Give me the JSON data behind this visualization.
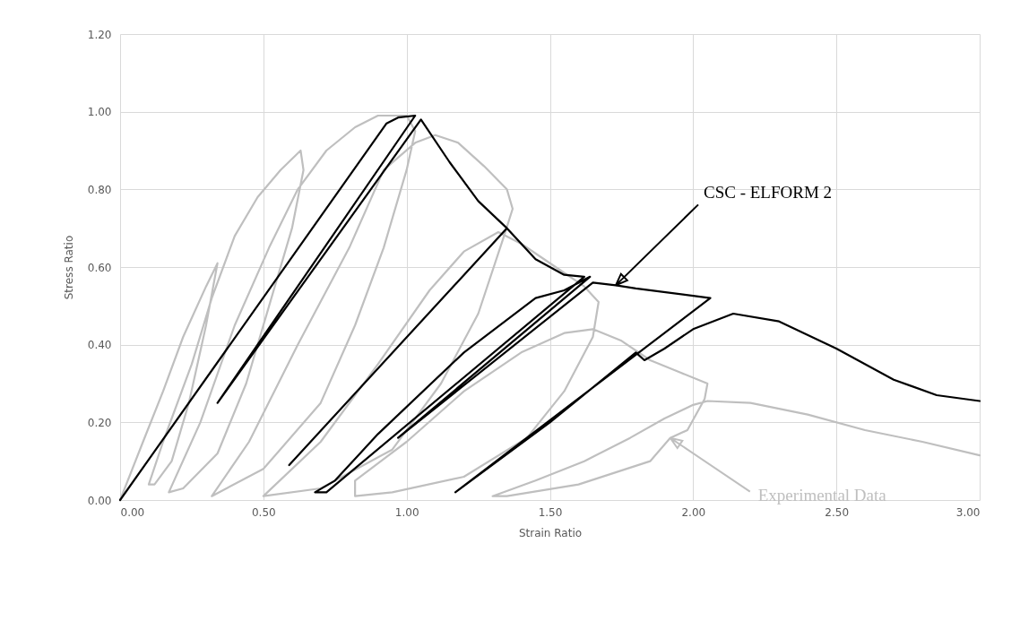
{
  "chart_data": {
    "type": "line",
    "xlabel": "Strain Ratio",
    "ylabel": "Stress Ratio",
    "xlim": [
      0,
      3
    ],
    "ylim": [
      0,
      1.2
    ],
    "xticks": [
      {
        "value": 0,
        "label": "0.00"
      },
      {
        "value": 0.5,
        "label": "0.50"
      },
      {
        "value": 1,
        "label": "1.00"
      },
      {
        "value": 1.5,
        "label": "1.50"
      },
      {
        "value": 2,
        "label": "2.00"
      },
      {
        "value": 2.5,
        "label": "2.50"
      },
      {
        "value": 3,
        "label": "3.00"
      }
    ],
    "yticks": [
      {
        "value": 0,
        "label": "0.00"
      },
      {
        "value": 0.2,
        "label": "0.20"
      },
      {
        "value": 0.4,
        "label": "0.40"
      },
      {
        "value": 0.6,
        "label": "0.60"
      },
      {
        "value": 0.8,
        "label": "0.80"
      },
      {
        "value": 1,
        "label": "1.00"
      },
      {
        "value": 1.2,
        "label": "1.20"
      }
    ],
    "grid": true,
    "line_style": "solid",
    "series": [
      {
        "color": "#bfbfbf",
        "x": [
          0,
          0.08,
          0.15,
          0.22,
          0.3,
          0.34,
          0.3,
          0.24,
          0.18,
          0.12,
          0.1,
          0.15,
          0.25,
          0.32,
          0.4,
          0.48,
          0.56,
          0.63,
          0.64,
          0.6,
          0.52,
          0.44,
          0.34,
          0.22,
          0.17,
          0.28,
          0.4,
          0.52,
          0.62,
          0.72,
          0.82,
          0.9,
          1.0,
          1.03,
          1.0,
          0.92,
          0.82,
          0.7,
          0.5,
          0.32,
          0.45,
          0.62,
          0.8,
          0.92,
          1.03,
          1.1,
          1.18,
          1.27,
          1.35,
          1.37,
          1.34,
          1.25,
          1.12,
          0.95,
          0.7,
          0.5,
          0.7,
          0.9,
          1.08,
          1.2,
          1.32,
          1.4,
          1.52,
          1.62,
          1.67,
          1.65,
          1.55,
          1.42,
          1.2,
          0.95,
          0.82,
          0.82,
          1.0,
          1.2,
          1.4,
          1.55,
          1.65,
          1.75,
          1.85,
          1.95,
          2.05,
          2.04,
          1.98,
          1.92,
          1.85,
          1.6,
          1.35,
          1.3,
          1.45,
          1.62,
          1.78,
          1.9,
          2.0,
          2.05,
          2.2,
          2.4,
          2.6,
          2.8,
          3.0
        ],
        "values": [
          0,
          0.15,
          0.28,
          0.42,
          0.55,
          0.61,
          0.45,
          0.25,
          0.1,
          0.04,
          0.04,
          0.15,
          0.35,
          0.52,
          0.68,
          0.78,
          0.85,
          0.9,
          0.85,
          0.7,
          0.5,
          0.3,
          0.12,
          0.03,
          0.02,
          0.2,
          0.45,
          0.65,
          0.8,
          0.9,
          0.96,
          0.99,
          0.99,
          0.95,
          0.85,
          0.65,
          0.45,
          0.25,
          0.08,
          0.01,
          0.15,
          0.4,
          0.65,
          0.85,
          0.92,
          0.94,
          0.92,
          0.86,
          0.8,
          0.75,
          0.68,
          0.48,
          0.3,
          0.13,
          0.03,
          0.01,
          0.15,
          0.35,
          0.54,
          0.64,
          0.69,
          0.66,
          0.6,
          0.55,
          0.51,
          0.42,
          0.28,
          0.16,
          0.06,
          0.02,
          0.01,
          0.05,
          0.15,
          0.28,
          0.38,
          0.43,
          0.44,
          0.41,
          0.36,
          0.33,
          0.3,
          0.26,
          0.18,
          0.16,
          0.1,
          0.04,
          0.01,
          0.01,
          0.05,
          0.1,
          0.16,
          0.21,
          0.245,
          0.255,
          0.25,
          0.22,
          0.18,
          0.15,
          0.115
        ]
      },
      {
        "color": "#000000",
        "x": [
          0,
          0.93,
          0.97,
          1.03,
          0.34,
          1.05,
          1.15,
          1.25,
          1.35,
          0.59,
          1.35,
          1.45,
          1.55,
          1.62,
          0.72,
          0.68,
          0.75,
          0.9,
          1.2,
          1.45,
          1.55,
          1.64,
          0.97,
          1.65,
          1.73,
          1.8,
          2.06,
          1.17,
          1.5,
          1.8,
          1.83,
          1.9,
          2.0,
          2.14,
          2.3,
          2.5,
          2.7,
          2.85,
          3.0
        ],
        "values": [
          0,
          0.97,
          0.985,
          0.99,
          0.25,
          0.98,
          0.87,
          0.77,
          0.7,
          0.09,
          0.7,
          0.62,
          0.58,
          0.575,
          0.02,
          0.02,
          0.05,
          0.17,
          0.38,
          0.52,
          0.54,
          0.575,
          0.16,
          0.56,
          0.553,
          0.545,
          0.52,
          0.02,
          0.2,
          0.38,
          0.36,
          0.39,
          0.44,
          0.48,
          0.46,
          0.39,
          0.31,
          0.27,
          0.255
        ]
      }
    ],
    "annotations": [
      {
        "text": "Experimental Data",
        "x": 1.92,
        "y": 0.16
      },
      {
        "text": "CSC - ELFORM 2",
        "x": 1.73,
        "y": 0.553
      }
    ]
  }
}
